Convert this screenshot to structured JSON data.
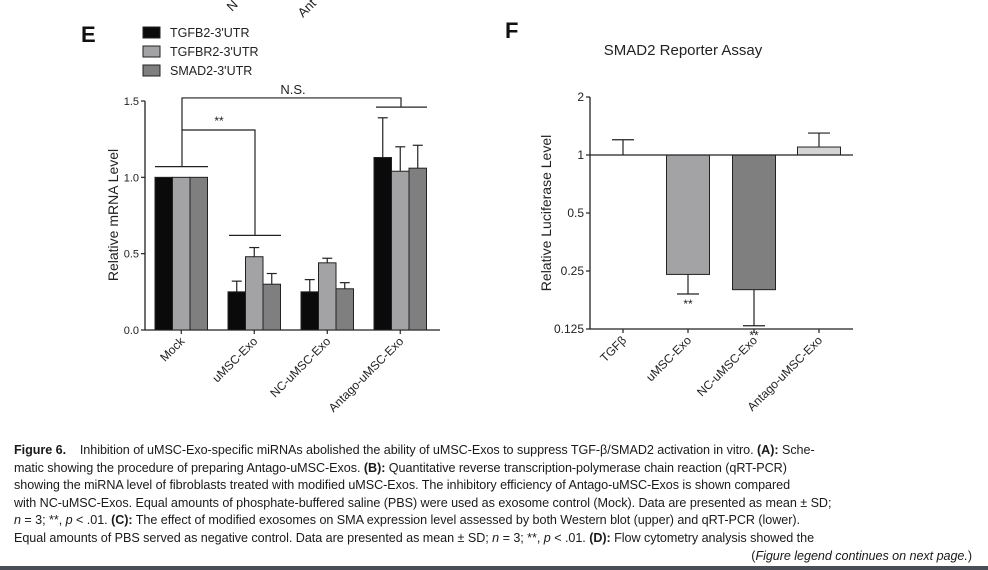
{
  "figure_label": "Figure 6.",
  "top_cut_labels": [
    "N",
    "Ant"
  ],
  "caption": {
    "lines": [
      [
        {
          "t": "Figure 6.",
          "b": true
        },
        {
          "t": "    Inhibition of uMSC-Exo-specific miRNAs abolished the ability of uMSC-Exos to suppress TGF-β/SMAD2 activation in vitro. "
        },
        {
          "t": "(A):",
          "b": true
        },
        {
          "t": " Sche-"
        }
      ],
      [
        {
          "t": "matic showing the procedure of preparing Antago-uMSC-Exos. "
        },
        {
          "t": "(B):",
          "b": true
        },
        {
          "t": " Quantitative reverse transcription-polymerase chain reaction (qRT-PCR)"
        }
      ],
      [
        {
          "t": "showing the miRNA level of fibroblasts treated with modified uMSC-Exos. The inhibitory efficiency of Antago-uMSC-Exos is shown compared"
        }
      ],
      [
        {
          "t": "with NC-uMSC-Exos. Equal amounts of phosphate-buffered saline (PBS) were used as exosome control (Mock). Data are presented as mean ± SD;"
        }
      ],
      [
        {
          "t": "n",
          "i": true
        },
        {
          "t": " = 3; **, "
        },
        {
          "t": "p",
          "i": true
        },
        {
          "t": " < .01. "
        },
        {
          "t": "(C):",
          "b": true
        },
        {
          "t": " The effect of modified exosomes on SMA expression level assessed by both Western blot (upper) and qRT-PCR (lower)."
        }
      ],
      [
        {
          "t": "Equal amounts of PBS served as negative control. Data are presented as mean ± SD; "
        },
        {
          "t": "n",
          "i": true
        },
        {
          "t": " = 3; **, "
        },
        {
          "t": "p",
          "i": true
        },
        {
          "t": " < .01. "
        },
        {
          "t": "(D):",
          "b": true
        },
        {
          "t": " Flow cytometry analysis showed the"
        }
      ]
    ],
    "continuation": [
      {
        "t": "("
      },
      {
        "t": "Figure legend continues on next page.",
        "i": true
      },
      {
        "t": ")"
      }
    ]
  },
  "chart_data": [
    {
      "panel": "E",
      "type": "bar",
      "title": "",
      "xlabel": "",
      "ylabel": "Relative mRNA Level",
      "ylim": [
        0,
        1.5
      ],
      "yticks": [
        0.0,
        0.5,
        1.0,
        1.5
      ],
      "ytick_labels": [
        "0.0",
        "0.5",
        "1.0",
        "1.5"
      ],
      "categories": [
        "Mock",
        "uMSC-Exo",
        "NC-uMSC-Exo",
        "Antago-uMSC-Exo"
      ],
      "legend_position": "top-left",
      "series": [
        {
          "name": "TGFB2-3'UTR",
          "color": "#0a0a0a",
          "values": [
            1.0,
            0.25,
            0.25,
            1.13
          ],
          "errors": [
            0.0,
            0.07,
            0.08,
            0.26
          ]
        },
        {
          "name": "TGFBR2-3'UTR",
          "color": "#a3a3a6",
          "values": [
            1.0,
            0.48,
            0.44,
            1.04
          ],
          "errors": [
            0.0,
            0.06,
            0.03,
            0.16
          ]
        },
        {
          "name": "SMAD2-3'UTR",
          "color": "#7f7f7f",
          "values": [
            1.0,
            0.3,
            0.27,
            1.06
          ],
          "errors": [
            0.0,
            0.07,
            0.04,
            0.15
          ]
        }
      ],
      "annotations": [
        {
          "text": "**",
          "from": "Mock",
          "to": "uMSC-Exo"
        },
        {
          "text": "N.S.",
          "from": "Mock",
          "to": "Antago-uMSC-Exo"
        }
      ]
    },
    {
      "panel": "F",
      "type": "bar",
      "title": "SMAD2 Reporter Assay",
      "xlabel": "",
      "ylabel": "Relative Luciferase Level",
      "yscale": "log2",
      "baseline": 1,
      "ylim": [
        0.125,
        2
      ],
      "yticks": [
        0.125,
        0.25,
        0.5,
        1,
        2
      ],
      "ytick_labels": [
        "0.125",
        "0.25",
        "0.5",
        "1",
        "2"
      ],
      "categories": [
        "TGFβ",
        "uMSC-Exo",
        "NC-uMSC-Exo",
        "Antago-uMSC-Exo"
      ],
      "values": [
        1.0,
        0.24,
        0.2,
        1.1
      ],
      "errors_to": [
        1.2,
        0.19,
        0.13,
        1.3
      ],
      "colors": [
        "#ffffff",
        "#a3a3a6",
        "#7f7f7f",
        "#d4d4d4"
      ],
      "significance": [
        "",
        "**",
        "**",
        ""
      ]
    }
  ]
}
